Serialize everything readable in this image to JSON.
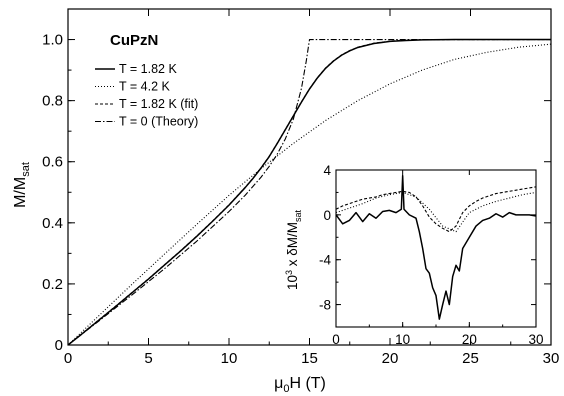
{
  "chart_data": [
    {
      "type": "line",
      "title": "CuPzN",
      "xlabel": "μ0H (T)",
      "ylabel": "M/Msat",
      "xlim": [
        0,
        30
      ],
      "ylim": [
        0,
        1.1
      ],
      "xticks": [
        "0",
        "5",
        "10",
        "15",
        "20",
        "25",
        "30"
      ],
      "yticks": [
        "0",
        "0.2",
        "0.4",
        "0.6",
        "0.8",
        "1.0"
      ],
      "legend_position": "top-left",
      "series": [
        {
          "name": "T = 1.82 K",
          "style": "solid",
          "x": [
            0,
            1,
            2,
            3,
            4,
            5,
            6,
            7,
            8,
            9,
            10,
            11,
            11.5,
            12,
            12.5,
            13,
            13.5,
            14,
            14.5,
            15,
            15.5,
            16,
            16.5,
            17,
            17.5,
            18,
            19,
            20,
            21,
            22,
            24,
            26,
            28,
            30
          ],
          "y": [
            0,
            0.042,
            0.085,
            0.128,
            0.172,
            0.216,
            0.262,
            0.308,
            0.356,
            0.406,
            0.458,
            0.515,
            0.546,
            0.58,
            0.617,
            0.66,
            0.705,
            0.75,
            0.795,
            0.838,
            0.875,
            0.906,
            0.93,
            0.949,
            0.963,
            0.974,
            0.987,
            0.994,
            0.997,
            0.999,
            1.0,
            1.0,
            1.0,
            1.0
          ]
        },
        {
          "name": "T = 4.2 K",
          "style": "dotted",
          "x": [
            0,
            2,
            4,
            6,
            8,
            10,
            12,
            14,
            16,
            18,
            20,
            22,
            24,
            26,
            28,
            30
          ],
          "y": [
            0,
            0.1,
            0.2,
            0.298,
            0.395,
            0.49,
            0.578,
            0.66,
            0.735,
            0.8,
            0.855,
            0.9,
            0.935,
            0.958,
            0.975,
            0.985
          ]
        },
        {
          "name": "T = 1.82 K (fit)",
          "style": "dashed",
          "x": [
            0,
            1,
            2,
            3,
            4,
            5,
            6,
            7,
            8,
            9,
            10,
            11,
            11.5,
            12,
            12.5,
            13,
            13.5,
            14,
            14.5,
            15,
            15.5,
            16,
            16.5,
            17,
            17.5,
            18,
            19,
            20,
            21,
            22,
            24,
            26,
            28,
            30
          ],
          "y": [
            0,
            0.043,
            0.086,
            0.129,
            0.173,
            0.217,
            0.263,
            0.309,
            0.357,
            0.407,
            0.459,
            0.516,
            0.547,
            0.581,
            0.618,
            0.661,
            0.706,
            0.751,
            0.796,
            0.839,
            0.876,
            0.907,
            0.931,
            0.95,
            0.964,
            0.975,
            0.988,
            0.995,
            0.998,
            0.999,
            1.0,
            1.0,
            1.0,
            1.0
          ]
        },
        {
          "name": "T = 0 (Theory)",
          "style": "dashdot",
          "x": [
            0,
            2,
            4,
            6,
            8,
            10,
            11,
            12,
            12.5,
            13,
            13.5,
            14,
            14.5,
            14.8,
            15,
            20,
            25,
            30
          ],
          "y": [
            0,
            0.082,
            0.165,
            0.25,
            0.34,
            0.437,
            0.49,
            0.55,
            0.585,
            0.625,
            0.675,
            0.74,
            0.84,
            0.93,
            1.0,
            1.0,
            1.0,
            1.0
          ]
        }
      ]
    },
    {
      "type": "line",
      "title": "",
      "xlabel": "",
      "ylabel": "10³ x δM/Msat",
      "xlim": [
        0,
        30
      ],
      "ylim": [
        -10,
        4
      ],
      "xticks": [
        "0",
        "10",
        "20",
        "30"
      ],
      "yticks": [
        "-8",
        "-4",
        "0",
        "4"
      ],
      "series": [
        {
          "name": "T = 1.82 K",
          "style": "solid",
          "x": [
            0,
            1,
            2,
            3,
            4,
            5,
            6,
            7,
            8,
            9,
            9.8,
            10,
            10.2,
            11,
            12,
            12.5,
            13,
            13.5,
            14,
            14.5,
            15,
            15.5,
            16,
            16.5,
            17,
            17.5,
            18,
            18.5,
            19,
            20,
            21,
            22,
            23,
            24,
            25,
            26,
            27,
            28,
            29,
            30
          ],
          "y": [
            0,
            -0.8,
            -0.5,
            0.2,
            -0.6,
            0.1,
            -0.3,
            0.3,
            0.4,
            0.2,
            0.5,
            3.5,
            0.5,
            0,
            -0.3,
            -1.5,
            -3.0,
            -4.8,
            -5.2,
            -6.5,
            -7.2,
            -9.3,
            -8.0,
            -6.8,
            -8.0,
            -5.5,
            -4.5,
            -5.0,
            -3.0,
            -2.0,
            -1.0,
            -0.5,
            -0.3,
            0.1,
            -0.2,
            0.2,
            0,
            0,
            0,
            -0.1
          ]
        },
        {
          "name": "T = 4.2 K",
          "style": "dotted",
          "x": [
            0,
            2,
            4,
            6,
            8,
            10,
            12,
            14,
            16,
            18,
            20,
            22,
            24,
            26,
            28,
            30
          ],
          "y": [
            0.2,
            0.6,
            1.0,
            1.5,
            1.8,
            2.0,
            1.6,
            0.5,
            -1.0,
            -1.5,
            0.2,
            0.8,
            1.2,
            1.5,
            1.8,
            2.0
          ]
        },
        {
          "name": "T = 1.82 K (fit)",
          "style": "dashed",
          "x": [
            0,
            1,
            2,
            3,
            4,
            5,
            6,
            7,
            8,
            9,
            10,
            11,
            12,
            13,
            14,
            15,
            16,
            17,
            18,
            19,
            20,
            21,
            22,
            23,
            24,
            25,
            26,
            27,
            28,
            29,
            30
          ],
          "y": [
            0.5,
            0.8,
            1.0,
            1.2,
            1.4,
            1.5,
            1.6,
            1.8,
            1.9,
            2.0,
            2.1,
            2.0,
            1.6,
            0.8,
            -0.2,
            -0.8,
            -1.2,
            -1.5,
            -1.0,
            0.2,
            0.8,
            1.2,
            1.5,
            1.7,
            1.9,
            2.0,
            2.1,
            2.2,
            2.3,
            2.4,
            2.5
          ]
        }
      ]
    }
  ]
}
